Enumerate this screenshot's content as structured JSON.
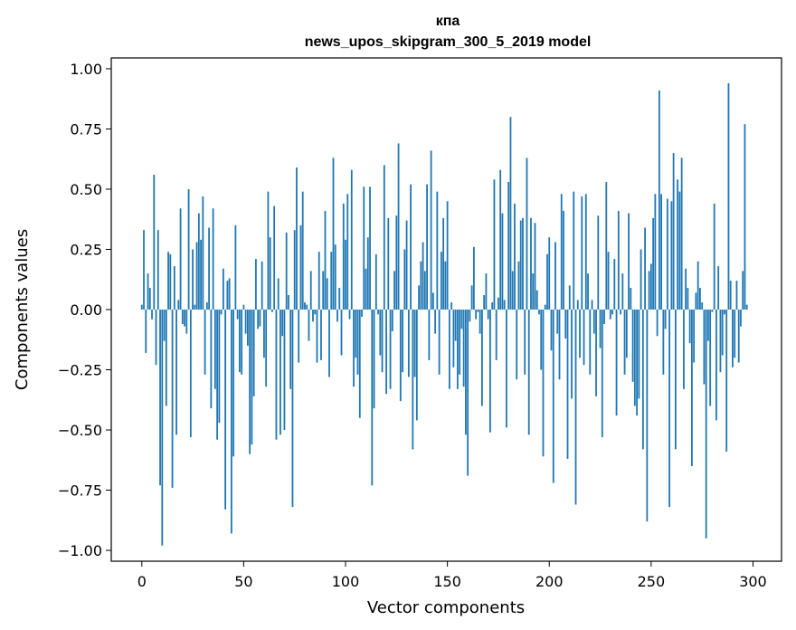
{
  "chart_data": {
    "type": "bar",
    "title": "кпа",
    "subtitle": "news_upos_skipgram_300_5_2019 model",
    "xlabel": "Vector components",
    "ylabel": "Components values",
    "xlim": [
      -15,
      314
    ],
    "ylim": [
      -1.045,
      1.045
    ],
    "xticks": [
      0,
      50,
      100,
      150,
      200,
      250,
      300
    ],
    "yticks": [
      -1.0,
      -0.75,
      -0.5,
      -0.25,
      0.0,
      0.25,
      0.5,
      0.75,
      1.0
    ],
    "xtick_labels": [
      "0",
      "50",
      "100",
      "150",
      "200",
      "250",
      "300"
    ],
    "ytick_labels": [
      "−1.00",
      "−0.75",
      "−0.50",
      "−0.25",
      "0.00",
      "0.25",
      "0.50",
      "0.75",
      "1.00"
    ],
    "bar_color": "#1f77b4",
    "values": [
      0.02,
      0.33,
      -0.18,
      0.15,
      0.09,
      -0.04,
      0.56,
      -0.23,
      0.33,
      -0.73,
      -0.98,
      -0.13,
      -0.4,
      0.24,
      0.23,
      -0.74,
      0.18,
      -0.52,
      0.04,
      0.42,
      -0.06,
      -0.07,
      -0.1,
      0.5,
      -0.53,
      0.25,
      0.02,
      0.28,
      0.4,
      0.29,
      0.47,
      -0.27,
      0.03,
      0.34,
      -0.41,
      0.42,
      -0.33,
      -0.54,
      -0.47,
      -0.02,
      0.17,
      -0.83,
      0.12,
      0.13,
      -0.93,
      -0.61,
      0.35,
      -0.04,
      -0.26,
      -0.27,
      0.02,
      -0.1,
      -0.15,
      -0.6,
      -0.56,
      -0.36,
      0.21,
      -0.08,
      -0.07,
      0.2,
      -0.2,
      -0.32,
      0.49,
      0.3,
      -0.01,
      0.43,
      -0.54,
      0.13,
      -0.52,
      -0.11,
      -0.5,
      0.32,
      0.06,
      -0.33,
      -0.82,
      0.33,
      0.59,
      -0.22,
      0.35,
      0.49,
      0.03,
      0.02,
      -0.13,
      0.16,
      -0.05,
      -0.02,
      -0.22,
      0.24,
      -0.21,
      0.16,
      0.41,
      0.13,
      -0.28,
      0.24,
      0.63,
      0.27,
      -0.05,
      0.09,
      -0.19,
      0.44,
      0.29,
      0.48,
      -0.04,
      0.58,
      -0.32,
      -0.2,
      -0.27,
      -0.45,
      -0.03,
      0.51,
      0.17,
      0.3,
      0.51,
      -0.73,
      -0.41,
      0.23,
      -0.02,
      -0.19,
      -0.26,
      0.6,
      -0.35,
      0.38,
      -0.33,
      -0.09,
      0.16,
      0.39,
      0.69,
      -0.38,
      -0.26,
      0.25,
      0.37,
      -0.28,
      0.52,
      -0.58,
      -0.28,
      -0.46,
      0.1,
      0.2,
      0.28,
      0.16,
      0.52,
      -0.21,
      0.66,
      0.07,
      -0.1,
      0.49,
      -0.27,
      0.24,
      0.38,
      0.2,
      0.45,
      -0.33,
      0.03,
      -0.24,
      -0.13,
      -0.33,
      -0.27,
      -0.08,
      -0.32,
      -0.52,
      -0.69,
      -0.05,
      0.1,
      0.26,
      -0.04,
      -0.01,
      -0.1,
      -0.4,
      0.06,
      0.15,
      -0.04,
      -0.51,
      0.03,
      0.54,
      -0.21,
      0.05,
      0.58,
      0.4,
      0.04,
      -0.49,
      0.53,
      0.8,
      0.16,
      0.44,
      -0.29,
      0.2,
      0.37,
      0.38,
      -0.27,
      0.63,
      -0.52,
      0.38,
      0.15,
      0.36,
      0.08,
      -0.02,
      -0.25,
      -0.61,
      0.02,
      0.23,
      0.3,
      -0.17,
      -0.72,
      0.28,
      -0.1,
      -0.29,
      0.48,
      0.41,
      -0.12,
      -0.62,
      0.1,
      -0.37,
      0.49,
      -0.81,
      0.04,
      -0.2,
      0.47,
      -0.23,
      0.48,
      0.15,
      -0.27,
      0.04,
      -0.1,
      -0.36,
      0.39,
      -0.16,
      -0.53,
      -0.06,
      0.53,
      0.24,
      -0.04,
      -0.02,
      0.21,
      -0.44,
      0.41,
      -0.02,
      0.15,
      -0.27,
      -0.2,
      0.4,
      0.09,
      -0.3,
      -0.4,
      -0.44,
      -0.37,
      0.25,
      -0.58,
      0.34,
      -0.88,
      0.16,
      0.19,
      0.38,
      0.48,
      -0.11,
      0.91,
      0.48,
      -0.27,
      -0.08,
      0.46,
      -0.82,
      0.45,
      0.65,
      -0.58,
      0.54,
      0.49,
      0.63,
      -0.33,
      0.17,
      0.09,
      -0.14,
      -0.65,
      -0.22,
      0.07,
      0.2,
      0.09,
      0.03,
      -0.31,
      -0.95,
      -0.13,
      -0.4,
      -0.01,
      0.44,
      -0.46,
      0.18,
      -0.26,
      -0.19,
      -0.02,
      -0.59,
      0.94,
      0.12,
      -0.24,
      -0.2,
      0.12,
      -0.22,
      -0.07,
      0.16,
      0.77,
      0.02
    ]
  }
}
